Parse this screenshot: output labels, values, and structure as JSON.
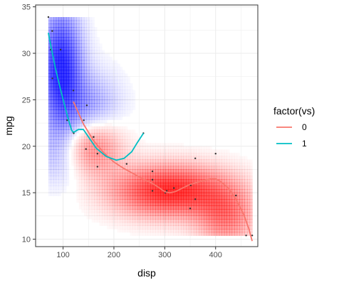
{
  "chart_data": {
    "type": "scatter",
    "title": "",
    "xlabel": "disp",
    "ylabel": "mpg",
    "xlim": [
      46,
      483
    ],
    "ylim": [
      9.2,
      35.2
    ],
    "x_ticks": [
      100,
      200,
      300,
      400
    ],
    "y_ticks": [
      10,
      15,
      20,
      25,
      30,
      35
    ],
    "x_tick_labels": [
      "100",
      "200",
      "300",
      "400"
    ],
    "y_tick_labels": [
      "10",
      "15",
      "20",
      "25",
      "30",
      "35"
    ],
    "grid": true,
    "legend": {
      "title": "factor(vs)",
      "position": "right",
      "entries": [
        "0",
        "1"
      ]
    },
    "colors": {
      "vs0": "#F8766D",
      "vs1": "#00BFC4",
      "density_high": "#ff0000",
      "density_low": "#0000ff",
      "point": "#333333",
      "grid": "#ebebeb",
      "panel_border": "#333333"
    },
    "density": {
      "description_free": true,
      "value_range": [
        -1,
        1
      ],
      "centers": [
        {
          "x": 310,
          "y": 15.2,
          "sx": 75,
          "sy": 1.9,
          "weight": 1.0
        },
        {
          "x": 150,
          "y": 20.3,
          "sx": 42,
          "sy": 2.3,
          "weight": 0.9
        },
        {
          "x": 420,
          "y": 12.5,
          "sx": 40,
          "sy": 2.3,
          "weight": 0.55
        },
        {
          "x": 95,
          "y": 28.5,
          "sx": 28,
          "sy": 4.2,
          "weight": -1.0
        },
        {
          "x": 150,
          "y": 23.0,
          "sx": 42,
          "sy": 3.0,
          "weight": -0.55
        },
        {
          "x": 100,
          "y": 19.5,
          "sx": 40,
          "sy": 2.5,
          "weight": -0.35
        }
      ],
      "x_range": [
        71,
        472
      ],
      "y_range": [
        10.4,
        33.9
      ]
    },
    "points": [
      {
        "x": 71.1,
        "y": 33.9
      },
      {
        "x": 75.7,
        "y": 30.4
      },
      {
        "x": 78.7,
        "y": 32.4
      },
      {
        "x": 79.0,
        "y": 27.3
      },
      {
        "x": 95.1,
        "y": 30.4
      },
      {
        "x": 108.0,
        "y": 22.8
      },
      {
        "x": 120.1,
        "y": 21.5
      },
      {
        "x": 120.3,
        "y": 26.0
      },
      {
        "x": 121.0,
        "y": 21.4
      },
      {
        "x": 140.8,
        "y": 22.8
      },
      {
        "x": 145.0,
        "y": 19.7
      },
      {
        "x": 146.7,
        "y": 24.4
      },
      {
        "x": 160.0,
        "y": 21.0
      },
      {
        "x": 160.0,
        "y": 21.0
      },
      {
        "x": 167.6,
        "y": 19.2
      },
      {
        "x": 167.6,
        "y": 17.8
      },
      {
        "x": 225.0,
        "y": 18.1
      },
      {
        "x": 258.0,
        "y": 21.4
      },
      {
        "x": 275.8,
        "y": 16.4
      },
      {
        "x": 275.8,
        "y": 17.3
      },
      {
        "x": 275.8,
        "y": 15.2
      },
      {
        "x": 301.0,
        "y": 15.0
      },
      {
        "x": 304.0,
        "y": 15.2
      },
      {
        "x": 318.0,
        "y": 15.5
      },
      {
        "x": 350.0,
        "y": 13.3
      },
      {
        "x": 351.0,
        "y": 15.8
      },
      {
        "x": 360.0,
        "y": 18.7
      },
      {
        "x": 360.0,
        "y": 14.3
      },
      {
        "x": 400.0,
        "y": 19.2
      },
      {
        "x": 440.0,
        "y": 14.7
      },
      {
        "x": 460.0,
        "y": 10.4
      },
      {
        "x": 472.0,
        "y": 10.4
      }
    ],
    "series": [
      {
        "name": "0",
        "color": "#F8766D",
        "x": [
          120.3,
          140,
          160,
          180,
          200,
          220,
          240,
          260,
          275.8,
          290,
          300,
          310,
          320,
          335,
          350,
          370,
          390,
          400,
          410,
          425,
          440,
          455,
          465,
          472
        ],
        "y": [
          24.8,
          22.4,
          20.6,
          19.3,
          18.3,
          17.6,
          17.0,
          16.4,
          16.0,
          15.5,
          15.1,
          15.0,
          15.1,
          15.5,
          15.9,
          16.2,
          16.5,
          16.5,
          16.2,
          15.5,
          14.3,
          12.7,
          11.2,
          9.8
        ]
      },
      {
        "name": "1",
        "color": "#00BFC4",
        "x": [
          71.1,
          76,
          85,
          95,
          105,
          112,
          117,
          121,
          130,
          140,
          150,
          165,
          185,
          205,
          220,
          235,
          245,
          258
        ],
        "y": [
          32.2,
          30.8,
          28.4,
          26.1,
          24.0,
          22.6,
          21.7,
          21.5,
          21.8,
          21.8,
          21.0,
          19.8,
          18.9,
          18.5,
          18.7,
          19.4,
          20.3,
          21.4
        ]
      }
    ]
  }
}
